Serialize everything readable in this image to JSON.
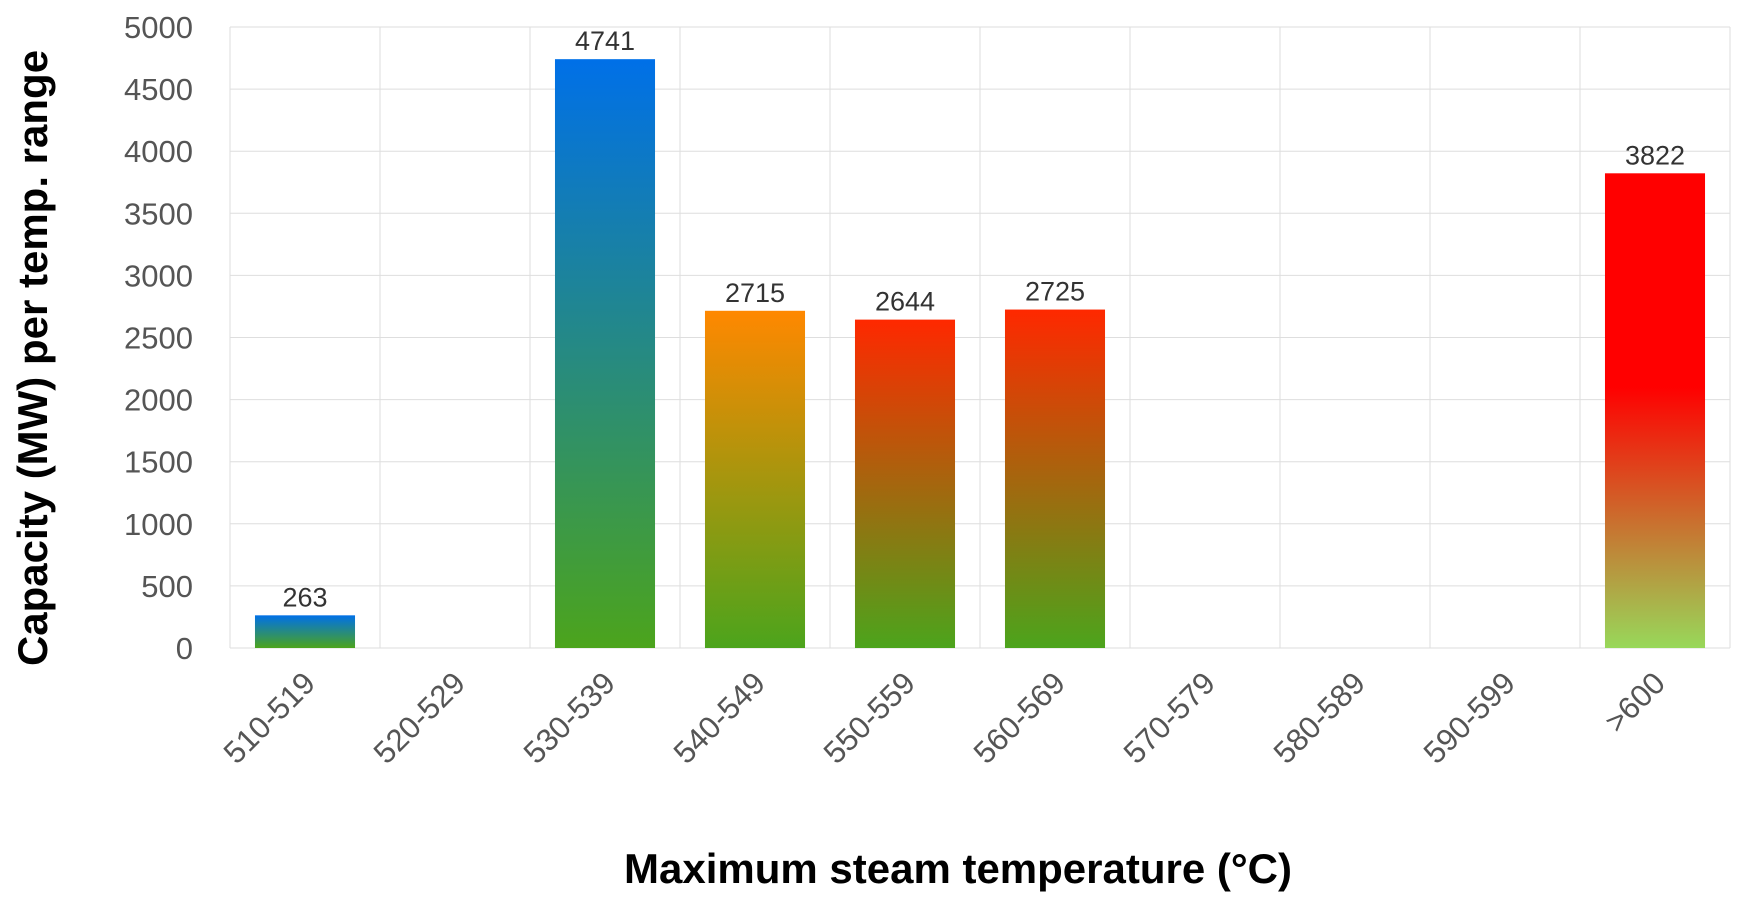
{
  "chart_data": {
    "type": "bar",
    "title": "",
    "xlabel": "Maximum steam temperature (°C)",
    "ylabel": "Capacity (MW) per temp. range",
    "categories": [
      "510-519",
      "520-529",
      "530-539",
      "540-549",
      "550-559",
      "560-569",
      "570-579",
      "580-589",
      "590-599",
      ">600"
    ],
    "values": [
      263,
      0,
      4741,
      2715,
      2644,
      2725,
      0,
      0,
      0,
      3822
    ],
    "data_labels": [
      "263",
      "",
      "4741",
      "2715",
      "2644",
      "2725",
      "",
      "",
      "",
      "3822"
    ],
    "ylim": [
      0,
      5000
    ],
    "yticks": [
      "0",
      "500",
      "1000",
      "1500",
      "2000",
      "2500",
      "3000",
      "3500",
      "4000",
      "4500",
      "5000"
    ],
    "grid": true,
    "legend": "none",
    "bar_gradients": [
      [
        "#0070e8",
        "#4ca41c"
      ],
      null,
      [
        "#0070e8",
        "#4ca41c"
      ],
      [
        "#ff8800",
        "#4ca41c"
      ],
      [
        "#ff2800",
        "#4ca41c"
      ],
      [
        "#ff2800",
        "#4ca41c"
      ],
      null,
      null,
      null,
      [
        "#ff0000",
        "#98d85a"
      ]
    ]
  }
}
